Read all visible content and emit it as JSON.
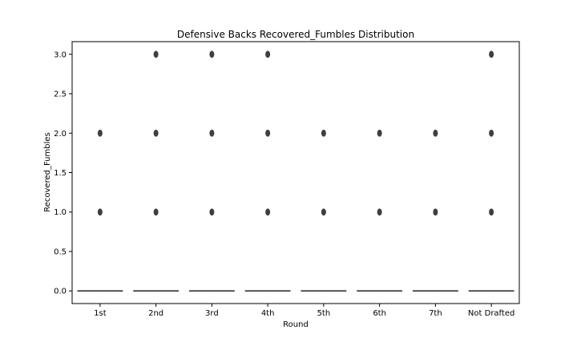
{
  "chart_data": {
    "type": "box",
    "title": "Defensive Backs Recovered_Fumbles Distribution",
    "xlabel": "Round",
    "ylabel": "Recovered_Fumbles",
    "categories": [
      "1st",
      "2nd",
      "3rd",
      "4th",
      "5th",
      "6th",
      "7th",
      "Not Drafted"
    ],
    "ylim": [
      -0.16,
      3.16
    ],
    "yticks": [
      0.0,
      0.5,
      1.0,
      1.5,
      2.0,
      2.5,
      3.0
    ],
    "ytick_labels": [
      "0.0",
      "0.5",
      "1.0",
      "1.5",
      "2.0",
      "2.5",
      "3.0"
    ],
    "boxes": [
      {
        "category": "1st",
        "q1": 0,
        "median": 0,
        "q3": 0,
        "whisker_low": 0,
        "whisker_high": 0,
        "outliers": [
          1,
          2
        ]
      },
      {
        "category": "2nd",
        "q1": 0,
        "median": 0,
        "q3": 0,
        "whisker_low": 0,
        "whisker_high": 0,
        "outliers": [
          1,
          2,
          3
        ]
      },
      {
        "category": "3rd",
        "q1": 0,
        "median": 0,
        "q3": 0,
        "whisker_low": 0,
        "whisker_high": 0,
        "outliers": [
          1,
          2,
          3
        ]
      },
      {
        "category": "4th",
        "q1": 0,
        "median": 0,
        "q3": 0,
        "whisker_low": 0,
        "whisker_high": 0,
        "outliers": [
          1,
          2,
          3
        ]
      },
      {
        "category": "5th",
        "q1": 0,
        "median": 0,
        "q3": 0,
        "whisker_low": 0,
        "whisker_high": 0,
        "outliers": [
          1,
          2
        ]
      },
      {
        "category": "6th",
        "q1": 0,
        "median": 0,
        "q3": 0,
        "whisker_low": 0,
        "whisker_high": 0,
        "outliers": [
          1,
          2
        ]
      },
      {
        "category": "7th",
        "q1": 0,
        "median": 0,
        "q3": 0,
        "whisker_low": 0,
        "whisker_high": 0,
        "outliers": [
          1,
          2
        ]
      },
      {
        "category": "Not Drafted",
        "q1": 0,
        "median": 0,
        "q3": 0,
        "whisker_low": 0,
        "whisker_high": 0,
        "outliers": [
          1,
          2,
          3
        ]
      }
    ],
    "grid": false,
    "legend": false,
    "colors": {
      "box_line": "#3f3f3f",
      "axes": "#000000",
      "outlier": "#3f3f3f"
    }
  }
}
